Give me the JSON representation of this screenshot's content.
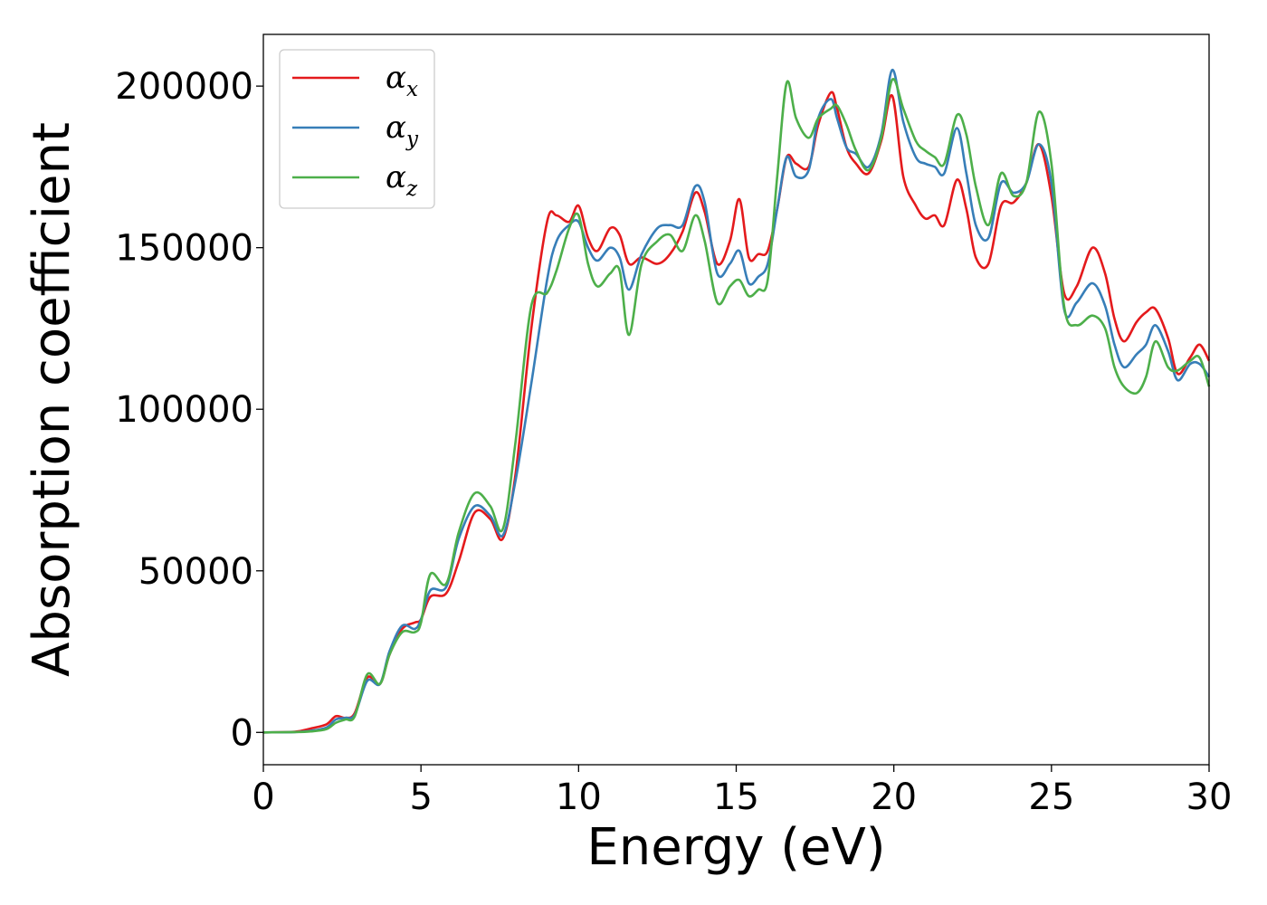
{
  "chart_data": {
    "type": "line",
    "xlabel": "Energy (eV)",
    "ylabel": "Absorption coefficient",
    "xlim": [
      0,
      30
    ],
    "ylim": [
      -10000,
      216000
    ],
    "xticks": [
      0,
      5,
      10,
      15,
      20,
      25,
      30
    ],
    "xtick_labels": [
      "0",
      "5",
      "10",
      "15",
      "20",
      "25",
      "30"
    ],
    "yticks": [
      0,
      50000,
      100000,
      150000,
      200000
    ],
    "ytick_labels": [
      "0",
      "50000",
      "100000",
      "150000",
      "200000"
    ],
    "grid": false,
    "legend": {
      "position": "top-left"
    },
    "series": [
      {
        "name": "α",
        "subscript": "x",
        "color": "#e41a1c",
        "x": [
          0,
          1,
          1.5,
          2.0,
          2.3,
          2.6,
          2.9,
          3.3,
          3.7,
          4.0,
          4.4,
          4.8,
          5.0,
          5.3,
          5.8,
          6.2,
          6.7,
          7.2,
          7.6,
          8.0,
          8.5,
          9.0,
          9.3,
          9.7,
          10.0,
          10.3,
          10.6,
          11.0,
          11.3,
          11.6,
          12.0,
          12.5,
          12.9,
          13.3,
          13.7,
          14.0,
          14.4,
          14.8,
          15.1,
          15.4,
          15.7,
          16.0,
          16.3,
          16.6,
          16.9,
          17.3,
          17.6,
          18.0,
          18.2,
          18.5,
          18.8,
          19.2,
          19.6,
          19.95,
          20.3,
          20.7,
          21.0,
          21.3,
          21.6,
          22.0,
          22.3,
          22.6,
          23.0,
          23.4,
          23.8,
          24.2,
          24.6,
          25.0,
          25.4,
          25.8,
          26.3,
          26.7,
          27.0,
          27.3,
          27.7,
          28.0,
          28.3,
          28.7,
          29.0,
          29.4,
          29.7,
          30.0
        ],
        "y": [
          0,
          200,
          1200,
          2500,
          5000,
          4500,
          6000,
          17000,
          15000,
          24000,
          32000,
          34000,
          35000,
          42000,
          43000,
          53000,
          68000,
          66000,
          60000,
          80000,
          125000,
          158000,
          160000,
          158000,
          163000,
          153000,
          149000,
          156000,
          154000,
          145000,
          147000,
          145000,
          148000,
          155000,
          167000,
          161000,
          145000,
          152000,
          165000,
          147000,
          148000,
          149000,
          162000,
          178000,
          176000,
          175000,
          188000,
          198000,
          193000,
          181000,
          176000,
          173000,
          183000,
          197000,
          172000,
          163000,
          159000,
          160000,
          157000,
          171000,
          162000,
          147000,
          145000,
          163000,
          164000,
          170000,
          182000,
          166000,
          136000,
          138000,
          150000,
          142000,
          128000,
          121000,
          127000,
          130000,
          131000,
          122000,
          111000,
          116000,
          120000,
          115000
        ]
      },
      {
        "name": "α",
        "subscript": "y",
        "color": "#377eb8",
        "x": [
          0,
          1,
          1.5,
          2.0,
          2.3,
          2.6,
          2.9,
          3.3,
          3.7,
          4.0,
          4.4,
          4.8,
          5.0,
          5.3,
          5.8,
          6.2,
          6.7,
          7.2,
          7.6,
          8.0,
          8.5,
          9.0,
          9.3,
          9.7,
          10.0,
          10.3,
          10.6,
          11.0,
          11.3,
          11.6,
          12.0,
          12.5,
          12.9,
          13.3,
          13.7,
          14.0,
          14.4,
          14.8,
          15.1,
          15.4,
          15.7,
          16.0,
          16.3,
          16.6,
          16.9,
          17.3,
          17.6,
          18.0,
          18.2,
          18.5,
          18.8,
          19.2,
          19.6,
          19.95,
          20.3,
          20.7,
          21.0,
          21.3,
          21.6,
          22.0,
          22.3,
          22.6,
          23.0,
          23.4,
          23.8,
          24.2,
          24.6,
          25.0,
          25.4,
          25.8,
          26.3,
          26.7,
          27.0,
          27.3,
          27.7,
          28.0,
          28.3,
          28.7,
          29.0,
          29.4,
          29.7,
          30.0
        ],
        "y": [
          0,
          100,
          500,
          1500,
          4000,
          4500,
          5500,
          16000,
          15000,
          25000,
          33000,
          32000,
          35000,
          44000,
          45000,
          60000,
          70000,
          67000,
          61000,
          78000,
          108000,
          140000,
          152000,
          157000,
          158000,
          150000,
          146000,
          150000,
          147000,
          137000,
          148000,
          156000,
          157000,
          157000,
          169000,
          164000,
          142000,
          145000,
          149000,
          139000,
          141000,
          145000,
          162000,
          178000,
          172000,
          174000,
          190000,
          196000,
          190000,
          181000,
          179000,
          175000,
          185000,
          205000,
          189000,
          178000,
          176000,
          175000,
          173000,
          187000,
          173000,
          157000,
          153000,
          170000,
          167000,
          170000,
          182000,
          170000,
          131000,
          133000,
          139000,
          132000,
          120000,
          113000,
          117000,
          120000,
          126000,
          118000,
          109000,
          114000,
          114000,
          110000
        ]
      },
      {
        "name": "α",
        "subscript": "z",
        "color": "#4daf4a",
        "x": [
          0,
          1,
          1.5,
          2.0,
          2.3,
          2.6,
          2.9,
          3.3,
          3.7,
          4.0,
          4.4,
          4.8,
          5.0,
          5.3,
          5.8,
          6.2,
          6.7,
          7.2,
          7.6,
          8.0,
          8.5,
          9.0,
          9.3,
          9.7,
          10.0,
          10.3,
          10.6,
          11.0,
          11.3,
          11.6,
          12.0,
          12.5,
          12.9,
          13.3,
          13.7,
          14.0,
          14.4,
          14.8,
          15.1,
          15.4,
          15.7,
          16.0,
          16.3,
          16.6,
          16.9,
          17.3,
          17.6,
          18.0,
          18.2,
          18.5,
          18.8,
          19.2,
          19.6,
          19.95,
          20.3,
          20.7,
          21.0,
          21.3,
          21.6,
          22.0,
          22.3,
          22.6,
          23.0,
          23.4,
          23.8,
          24.2,
          24.6,
          25.0,
          25.4,
          25.8,
          26.3,
          26.7,
          27.0,
          27.3,
          27.7,
          28.0,
          28.3,
          28.7,
          29.0,
          29.4,
          29.7,
          30.0
        ],
        "y": [
          0,
          100,
          300,
          1000,
          3000,
          4000,
          5000,
          18000,
          15000,
          24000,
          31000,
          31000,
          34000,
          49000,
          46000,
          62000,
          74000,
          70000,
          63000,
          90000,
          132000,
          136000,
          143000,
          156000,
          160000,
          145000,
          138000,
          142000,
          143000,
          123000,
          145000,
          152000,
          154000,
          149000,
          160000,
          152000,
          133000,
          138000,
          140000,
          135000,
          137000,
          140000,
          172000,
          201000,
          190000,
          184000,
          190000,
          193000,
          194000,
          188000,
          180000,
          174000,
          184000,
          202000,
          193000,
          183000,
          180000,
          178000,
          176000,
          191000,
          185000,
          169000,
          157000,
          173000,
          166000,
          170000,
          192000,
          176000,
          132000,
          126000,
          129000,
          125000,
          113000,
          107000,
          105000,
          110000,
          121000,
          113000,
          112000,
          115000,
          116000,
          107000
        ]
      }
    ]
  }
}
